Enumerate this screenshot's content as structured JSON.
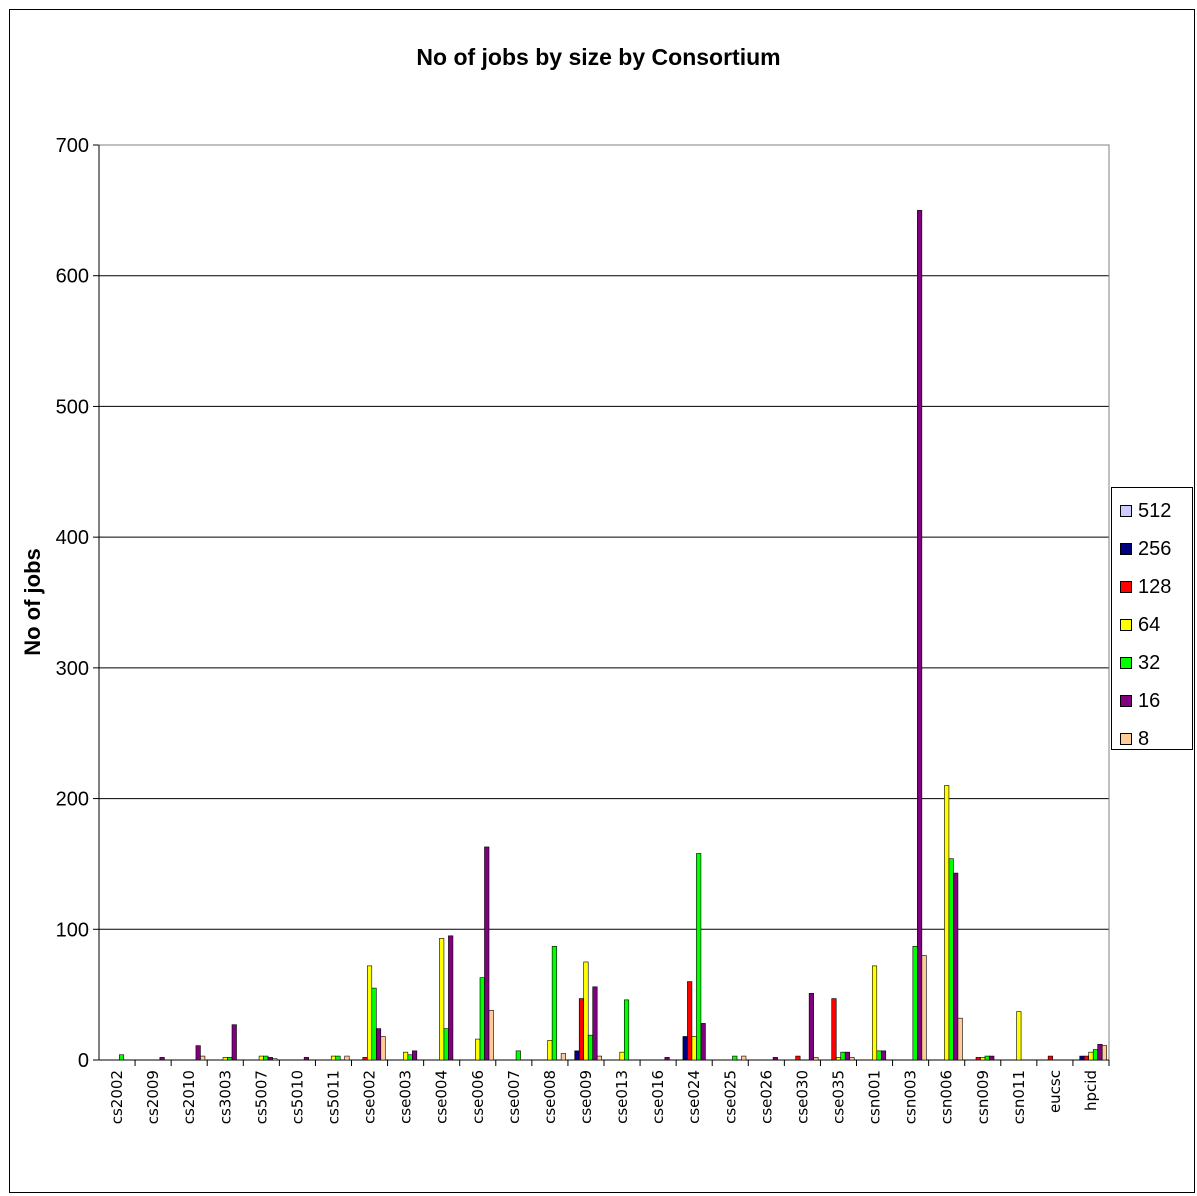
{
  "chart_data": {
    "type": "bar",
    "title": "No of jobs by size by Consortium",
    "xlabel": "",
    "ylabel": "No of jobs",
    "ylim": [
      0,
      700
    ],
    "yticks": [
      0,
      100,
      200,
      300,
      400,
      500,
      600,
      700
    ],
    "grid": true,
    "legend_position": "right",
    "categories": [
      "cs2002",
      "cs2009",
      "cs2010",
      "cs3003",
      "cs5007",
      "cs5010",
      "cs5011",
      "cse002",
      "cse003",
      "cse004",
      "cse006",
      "cse007",
      "cse008",
      "cse009",
      "cse013",
      "cse016",
      "cse024",
      "cse025",
      "cse026",
      "cse030",
      "cse035",
      "csn001",
      "csn003",
      "csn006",
      "csn009",
      "csn011",
      "eucsc",
      "hpcid"
    ],
    "series": [
      {
        "name": "512",
        "color": "#ccccff",
        "values": [
          0,
          0,
          0,
          0,
          0,
          0,
          0,
          0,
          0,
          0,
          0,
          0,
          0,
          0,
          0,
          0,
          0,
          0,
          0,
          0,
          0,
          0,
          0,
          0,
          0,
          0,
          0,
          0
        ]
      },
      {
        "name": "256",
        "color": "#000080",
        "values": [
          0,
          0,
          0,
          0,
          0,
          0,
          0,
          0,
          0,
          0,
          0,
          0,
          0,
          7,
          0,
          0,
          18,
          0,
          0,
          0,
          0,
          0,
          0,
          0,
          0,
          0,
          0,
          3
        ]
      },
      {
        "name": "128",
        "color": "#ff0000",
        "values": [
          0,
          0,
          0,
          0,
          0,
          0,
          0,
          2,
          0,
          0,
          0,
          0,
          0,
          47,
          0,
          0,
          60,
          0,
          0,
          3,
          47,
          0,
          0,
          0,
          2,
          0,
          3,
          3
        ]
      },
      {
        "name": "64",
        "color": "#ffff00",
        "values": [
          0,
          0,
          0,
          2,
          3,
          0,
          3,
          72,
          6,
          93,
          16,
          0,
          15,
          75,
          6,
          0,
          18,
          0,
          0,
          0,
          2,
          72,
          0,
          210,
          2,
          37,
          0,
          6
        ]
      },
      {
        "name": "32",
        "color": "#00ff00",
        "values": [
          4,
          0,
          0,
          2,
          3,
          0,
          3,
          55,
          4,
          24,
          63,
          7,
          87,
          19,
          46,
          0,
          158,
          3,
          0,
          0,
          6,
          7,
          87,
          154,
          3,
          0,
          0,
          8
        ]
      },
      {
        "name": "16",
        "color": "#800080",
        "values": [
          0,
          2,
          11,
          27,
          2,
          2,
          0,
          24,
          7,
          95,
          163,
          0,
          0,
          56,
          0,
          2,
          28,
          0,
          2,
          51,
          6,
          7,
          650,
          143,
          3,
          0,
          0,
          12
        ]
      },
      {
        "name": "8",
        "color": "#ffcc99",
        "values": [
          0,
          0,
          3,
          0,
          1,
          0,
          3,
          18,
          0,
          0,
          38,
          0,
          5,
          3,
          0,
          0,
          0,
          3,
          0,
          2,
          2,
          0,
          80,
          32,
          0,
          0,
          0,
          11
        ]
      }
    ]
  }
}
